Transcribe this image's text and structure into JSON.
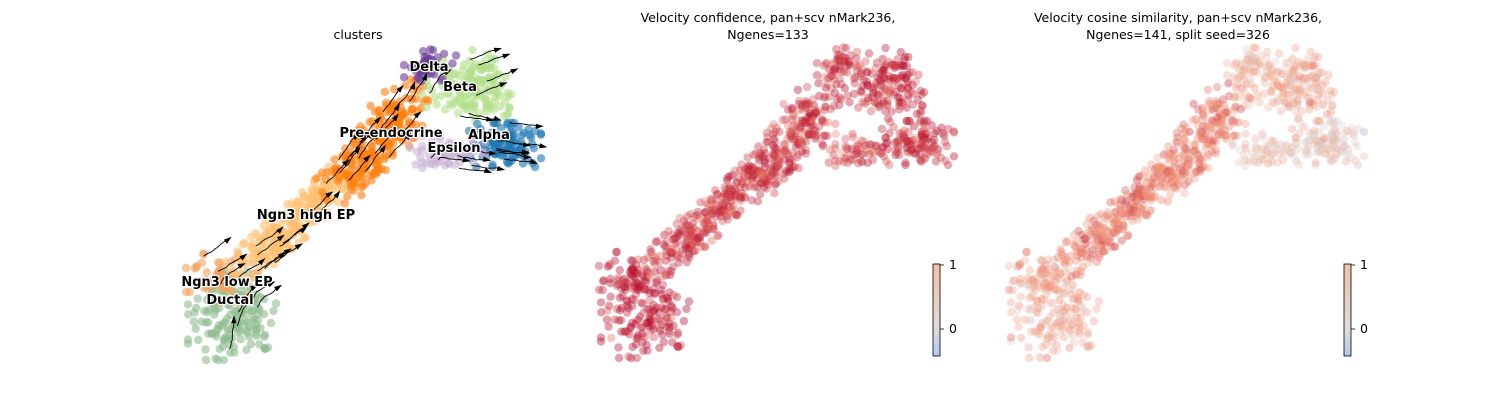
{
  "chart_data": [
    {
      "type": "scatter",
      "subtype": "umap-velocity-stream",
      "title": "clusters",
      "legend": "on-data",
      "clusters": [
        {
          "name": "Ductal",
          "color": "#8fbc8f"
        },
        {
          "name": "Ngn3 low EP",
          "color": "#f4a460"
        },
        {
          "name": "Ngn3 high EP",
          "color": "#fdbf6f"
        },
        {
          "name": "Pre-endocrine",
          "color": "#ff7f0e"
        },
        {
          "name": "Beta",
          "color": "#b2df8a"
        },
        {
          "name": "Alpha",
          "color": "#1f78b4"
        },
        {
          "name": "Delta",
          "color": "#6a3d9a"
        },
        {
          "name": "Epsilon",
          "color": "#cab2d6"
        }
      ]
    },
    {
      "type": "scatter",
      "subtype": "umap-colored",
      "title_line1": "Velocity confidence, pan+scv nMark236,",
      "title_line2": "Ngenes=133",
      "colorbar": {
        "ticks": [
          "1",
          "0"
        ],
        "range": [
          -0.4,
          1
        ],
        "colormap": "coolwarm"
      },
      "values": {
        "Ductal": 1.0,
        "Ngn3 low EP": 0.96,
        "Ngn3 high EP": 0.86,
        "Pre-endocrine": 0.88,
        "Beta": 0.92,
        "Alpha": 0.9,
        "Delta": 0.9,
        "Epsilon": 0.85
      }
    },
    {
      "type": "scatter",
      "subtype": "umap-colored",
      "title_line1": "Velocity cosine similarity, pan+scv nMark236,",
      "title_line2": "Ngenes=141, split seed=326",
      "colorbar": {
        "ticks": [
          "1",
          "0"
        ],
        "range": [
          -0.4,
          1
        ],
        "colormap": "coolwarm"
      },
      "values": {
        "Ductal": 0.55,
        "Ngn3 low EP": 0.62,
        "Ngn3 high EP": 0.72,
        "Pre-endocrine": 0.68,
        "Beta": 0.55,
        "Alpha": 0.4,
        "Delta": 0.5,
        "Epsilon": 0.45
      }
    }
  ]
}
